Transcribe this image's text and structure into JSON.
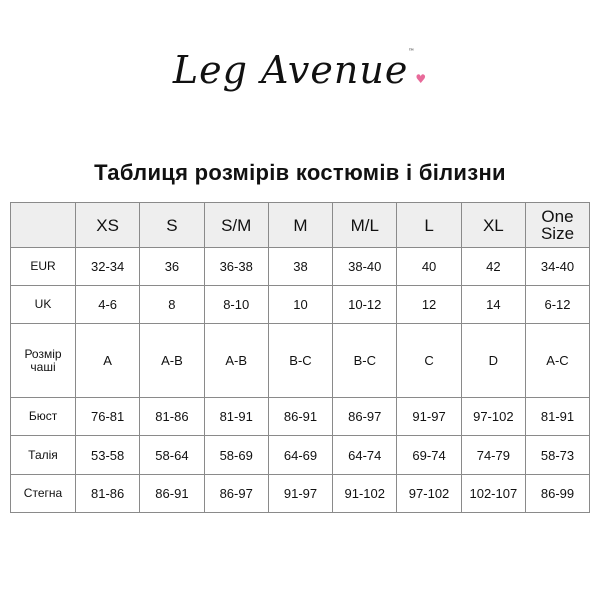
{
  "logo": {
    "text": "Leg Avenue",
    "tm": "™",
    "heart-icon": "heart",
    "accent": "#e86a9a"
  },
  "title": "Таблиця розмірів костюмів і білизни",
  "table": {
    "headers": [
      "",
      "XS",
      "S",
      "S/M",
      "M",
      "M/L",
      "L",
      "XL",
      "One Size"
    ],
    "rows": [
      {
        "label": "EUR",
        "cells": [
          "32-34",
          "36",
          "36-38",
          "38",
          "38-40",
          "40",
          "42",
          "34-40"
        ]
      },
      {
        "label": "UK",
        "cells": [
          "4-6",
          "8",
          "8-10",
          "10",
          "10-12",
          "12",
          "14",
          "6-12"
        ]
      },
      {
        "label": "Розмір чаші",
        "cells": [
          "A",
          "A-B",
          "A-B",
          "B-C",
          "B-C",
          "C",
          "D",
          "A-C"
        ]
      },
      {
        "label": "Бюст",
        "cells": [
          "76-81",
          "81-86",
          "81-91",
          "86-91",
          "86-97",
          "91-97",
          "97-102",
          "81-91"
        ]
      },
      {
        "label": "Талія",
        "cells": [
          "53-58",
          "58-64",
          "58-69",
          "64-69",
          "64-74",
          "69-74",
          "74-79",
          "58-73"
        ]
      },
      {
        "label": "Стегна",
        "cells": [
          "81-86",
          "86-91",
          "86-97",
          "91-97",
          "91-102",
          "97-102",
          "102-107",
          "86-99"
        ]
      }
    ]
  }
}
